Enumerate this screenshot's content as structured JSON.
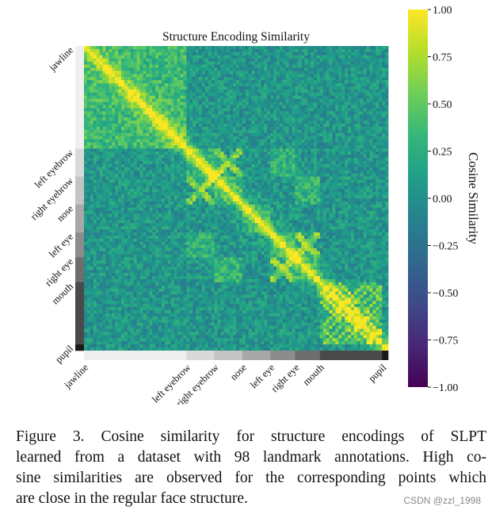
{
  "chart_data": {
    "type": "heatmap",
    "title": "Structure Encoding Similarity",
    "colorbar_label": "Cosine Similarity",
    "colorbar_range": [
      -1.0,
      1.0
    ],
    "colorbar_ticks": [
      "1.00",
      "0.75",
      "0.50",
      "0.25",
      "0.00",
      "−0.25",
      "−0.50",
      "−0.75",
      "−1.00"
    ],
    "colormap": [
      "#440154",
      "#482878",
      "#3e4989",
      "#31688e",
      "#26828e",
      "#1f9e89",
      "#35b779",
      "#6ece58",
      "#b5de2b",
      "#fde725"
    ],
    "n_landmarks": 98,
    "groups": [
      {
        "label": "jawline",
        "start": 0,
        "end": 33,
        "shade": "#efefef"
      },
      {
        "label": "left eyebrow",
        "start": 33,
        "end": 42,
        "shade": "#d9d9d9"
      },
      {
        "label": "right eyebrow",
        "start": 42,
        "end": 51,
        "shade": "#c4c4c4"
      },
      {
        "label": "nose",
        "start": 51,
        "end": 60,
        "shade": "#a8a8a8"
      },
      {
        "label": "left eye",
        "start": 60,
        "end": 68,
        "shade": "#8c8c8c"
      },
      {
        "label": "right eye",
        "start": 68,
        "end": 76,
        "shade": "#6e6e6e"
      },
      {
        "label": "mouth",
        "start": 76,
        "end": 96,
        "shade": "#4a4a4a"
      },
      {
        "label": "pupil",
        "start": 96,
        "end": 98,
        "shade": "#1a1a1a"
      }
    ]
  },
  "caption": {
    "lines": [
      "Figure 3.  Cosine similarity for structure encodings of SLPT",
      "learned from a dataset with 98 landmark annotations. High co-",
      "sine similarities are observed for the corresponding points which",
      "are close in the regular face structure."
    ]
  },
  "watermark": "CSDN @zzl_1998"
}
